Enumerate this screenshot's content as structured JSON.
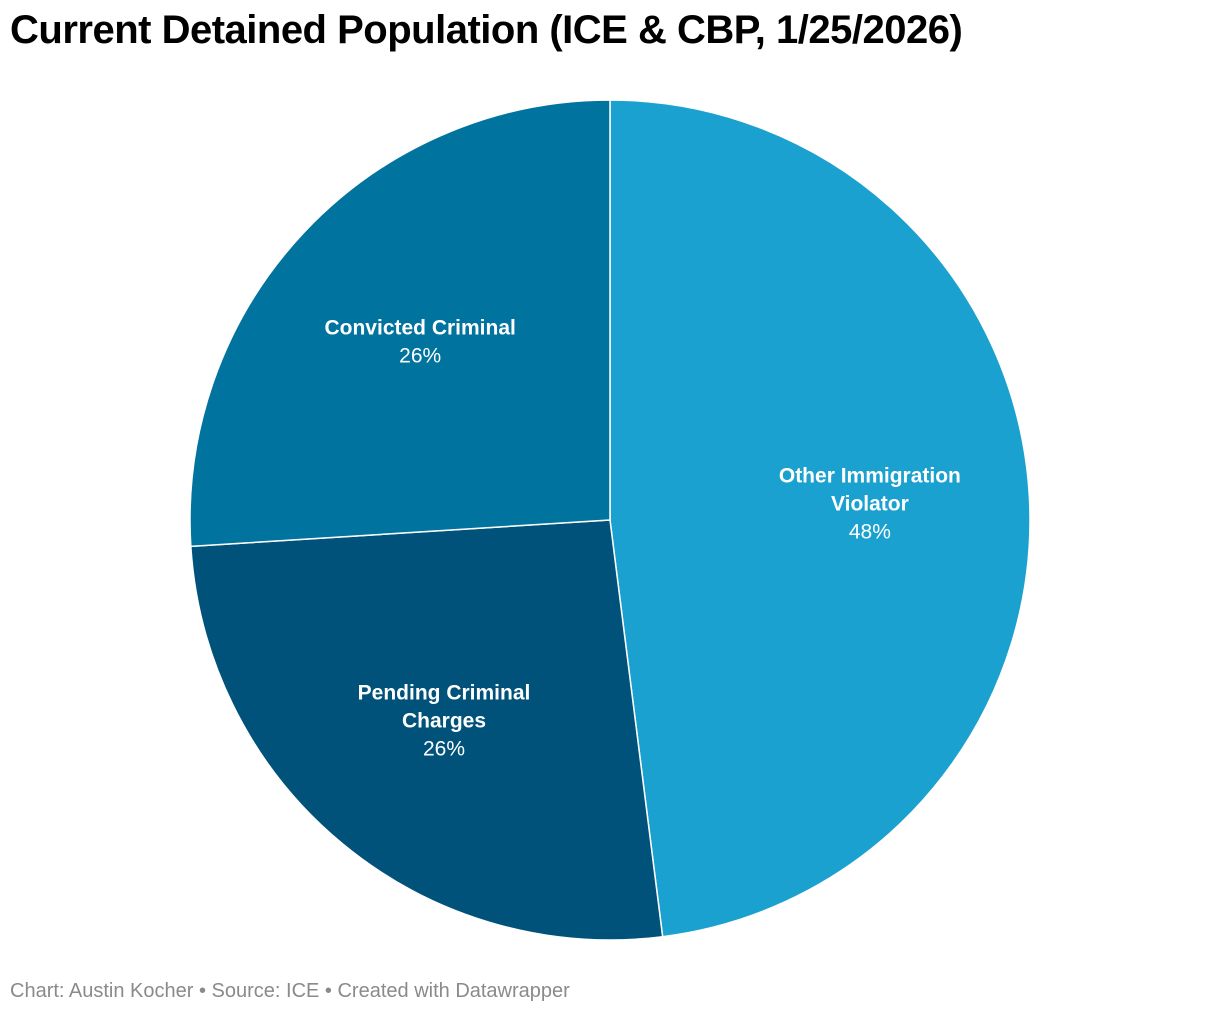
{
  "title": "Current Detained Population (ICE & CBP, 1/25/2026)",
  "chart_data": {
    "type": "pie",
    "slices": [
      {
        "name_lines": [
          "Other Immigration",
          "Violator"
        ],
        "value": 48,
        "value_label": "48%",
        "color": "#1ba1cf"
      },
      {
        "name_lines": [
          "Pending Criminal",
          "Charges"
        ],
        "value": 26,
        "value_label": "26%",
        "color": "#00527a"
      },
      {
        "name_lines": [
          "Convicted Criminal"
        ],
        "value": 26,
        "value_label": "26%",
        "color": "#00739f"
      }
    ],
    "start": "12 o'clock",
    "direction": "clockwise",
    "legend": "none"
  },
  "footer": {
    "credit": "Chart: Austin Kocher • Source: ICE • Created with Datawrapper"
  }
}
